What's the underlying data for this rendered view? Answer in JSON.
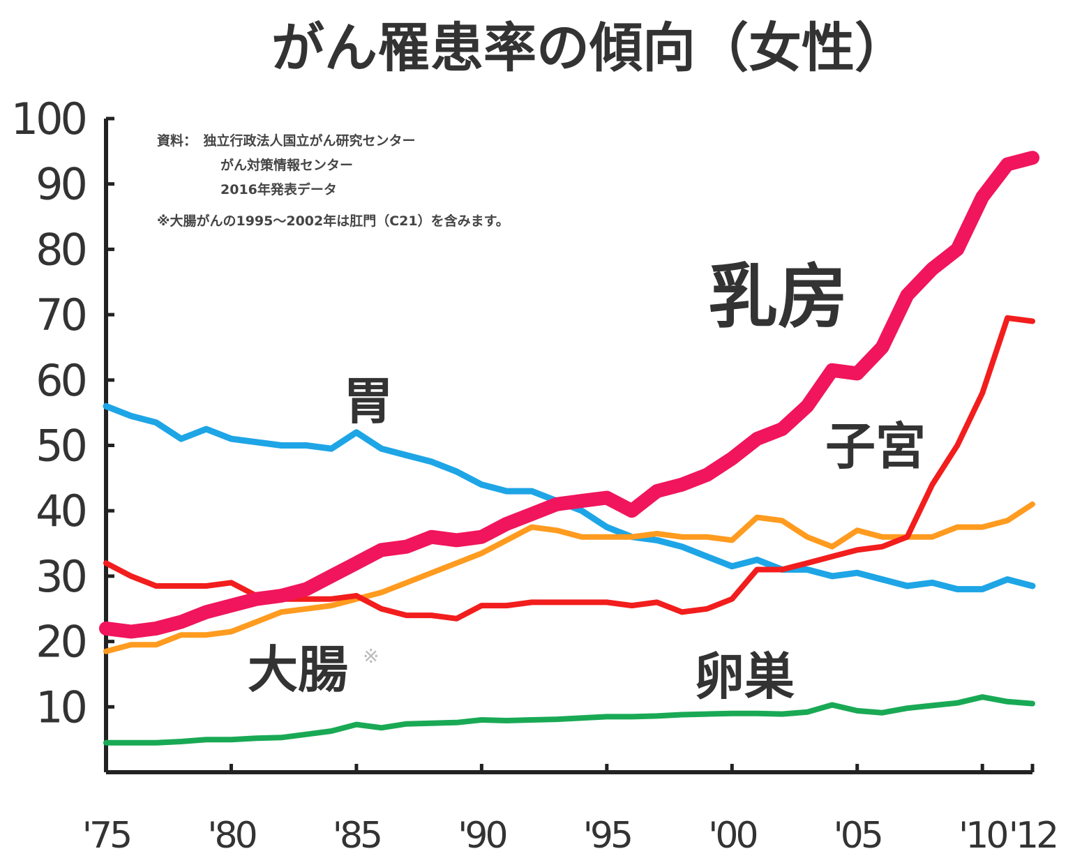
{
  "chart_data": {
    "type": "line",
    "title": "がん罹患率の傾向（女性）",
    "xlabel": "",
    "ylabel": "",
    "ylim": [
      0,
      100
    ],
    "xlim": [
      1975,
      2012
    ],
    "yticks": [
      "100",
      "90",
      "80",
      "70",
      "60",
      "50",
      "40",
      "30",
      "20",
      "10"
    ],
    "ytick_values": [
      100,
      90,
      80,
      70,
      60,
      50,
      40,
      30,
      20,
      10
    ],
    "xticks": [
      "'75",
      "'80",
      "'85",
      "'90",
      "'95",
      "'00",
      "'05",
      "'10",
      "'12"
    ],
    "xtick_values": [
      1975,
      1980,
      1985,
      1990,
      1995,
      2000,
      2005,
      2010,
      2012
    ],
    "grid": false,
    "source_lines": [
      "資料：　独立行政法人国立がん研究センター",
      "がん対策情報センター",
      "2016年発表データ",
      "※大腸がんの1995〜2002年は肛門（C21）を含みます。"
    ],
    "x": [
      1975,
      1976,
      1977,
      1978,
      1979,
      1980,
      1981,
      1982,
      1983,
      1984,
      1985,
      1986,
      1987,
      1988,
      1989,
      1990,
      1991,
      1992,
      1993,
      1994,
      1995,
      1996,
      1997,
      1998,
      1999,
      2000,
      2001,
      2002,
      2003,
      2004,
      2005,
      2006,
      2007,
      2008,
      2009,
      2010,
      2011,
      2012
    ],
    "series": [
      {
        "name": "胃",
        "color": "#1ea5e6",
        "width": 9,
        "values": [
          56,
          54.5,
          53.5,
          51,
          52.5,
          51,
          50.5,
          50,
          50,
          49.5,
          52,
          49.5,
          48.5,
          47.5,
          46,
          44,
          43,
          43,
          41.5,
          40,
          37.5,
          36,
          35.5,
          34.5,
          33,
          31.5,
          32.5,
          31,
          31,
          30,
          30.5,
          29.5,
          28.5,
          29,
          28,
          28,
          29.5,
          28.5
        ]
      },
      {
        "name": "大腸※",
        "color": "#ff9b1f",
        "width": 8,
        "values": [
          18.5,
          19.5,
          19.5,
          21,
          21,
          21.5,
          23,
          24.5,
          25,
          25.5,
          26.5,
          27.5,
          29,
          30.5,
          32,
          33.5,
          35.5,
          37.5,
          37,
          36,
          36,
          36,
          36.5,
          36,
          36,
          35.5,
          39,
          38.5,
          36,
          34.5,
          37,
          36,
          36,
          36,
          37.5,
          37.5,
          38.5,
          41
        ]
      },
      {
        "name": "子宮",
        "color": "#f21d1d",
        "width": 8,
        "values": [
          32,
          30,
          28.5,
          28.5,
          28.5,
          29,
          27,
          26.5,
          26.5,
          26.5,
          27,
          25,
          24,
          24,
          23.5,
          25.5,
          25.5,
          26,
          26,
          26,
          26,
          25.5,
          26,
          24.5,
          25,
          26.5,
          31,
          31,
          32,
          33,
          34,
          34.5,
          36,
          44,
          50,
          58,
          69.5,
          69
        ]
      },
      {
        "name": "卵巣",
        "color": "#19a955",
        "width": 8,
        "values": [
          4.5,
          4.5,
          4.5,
          4.7,
          5,
          5,
          5.2,
          5.3,
          5.8,
          6.3,
          7.3,
          6.8,
          7.4,
          7.5,
          7.6,
          8,
          7.9,
          8,
          8.1,
          8.3,
          8.5,
          8.5,
          8.6,
          8.8,
          8.9,
          9,
          9,
          8.9,
          9.2,
          10.3,
          9.4,
          9.1,
          9.8,
          10.2,
          10.6,
          11.5,
          10.8,
          10.5
        ]
      },
      {
        "name": "乳房",
        "color": "#f0155c",
        "width": 20,
        "values": [
          22,
          21.5,
          22,
          23,
          24.5,
          25.5,
          26.5,
          27,
          28,
          30,
          32,
          34,
          34.5,
          36,
          35.5,
          36,
          38,
          39.5,
          41,
          41.5,
          42,
          40,
          43,
          44,
          45.5,
          48,
          51,
          52.5,
          56,
          61.5,
          61,
          65,
          73,
          77,
          80,
          88,
          93,
          94
        ]
      }
    ],
    "annotations": {
      "breast": "乳房",
      "stomach": "胃",
      "uterus": "子宮",
      "colon": "大腸",
      "colon_mark": "※",
      "ovary": "卵巣"
    }
  }
}
